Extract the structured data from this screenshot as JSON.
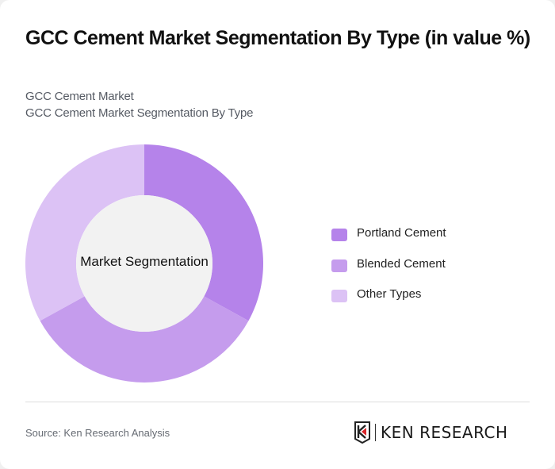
{
  "header": {
    "title": "GCC Cement Market Segmentation By Type (in value %)",
    "subtitle_1": "GCC Cement Market",
    "subtitle_2": "GCC Cement Market Segmentation By Type"
  },
  "chart_data": {
    "type": "pie",
    "subtype": "donut",
    "title": "GCC Cement Market Segmentation By Type (in value %)",
    "center_label": "Market Segmentation",
    "categories": [
      "Portland Cement",
      "Blended Cement",
      "Other Types"
    ],
    "values": [
      33,
      34,
      33
    ],
    "colors": [
      "#b583ea",
      "#c59ced",
      "#dcc2f5"
    ],
    "legend_position": "right",
    "start_angle": "top, clockwise"
  },
  "legend": {
    "items": [
      {
        "label": "Portland Cement",
        "color": "#b583ea"
      },
      {
        "label": "Blended Cement",
        "color": "#c59ced"
      },
      {
        "label": "Other Types",
        "color": "#dcc2f5"
      }
    ]
  },
  "footer": {
    "source": "Source: Ken Research Analysis",
    "logo_text": "KEN RESEARCH"
  },
  "colors": {
    "center_fill": "#f2f2f2",
    "logo_accent": "#d9252a"
  }
}
